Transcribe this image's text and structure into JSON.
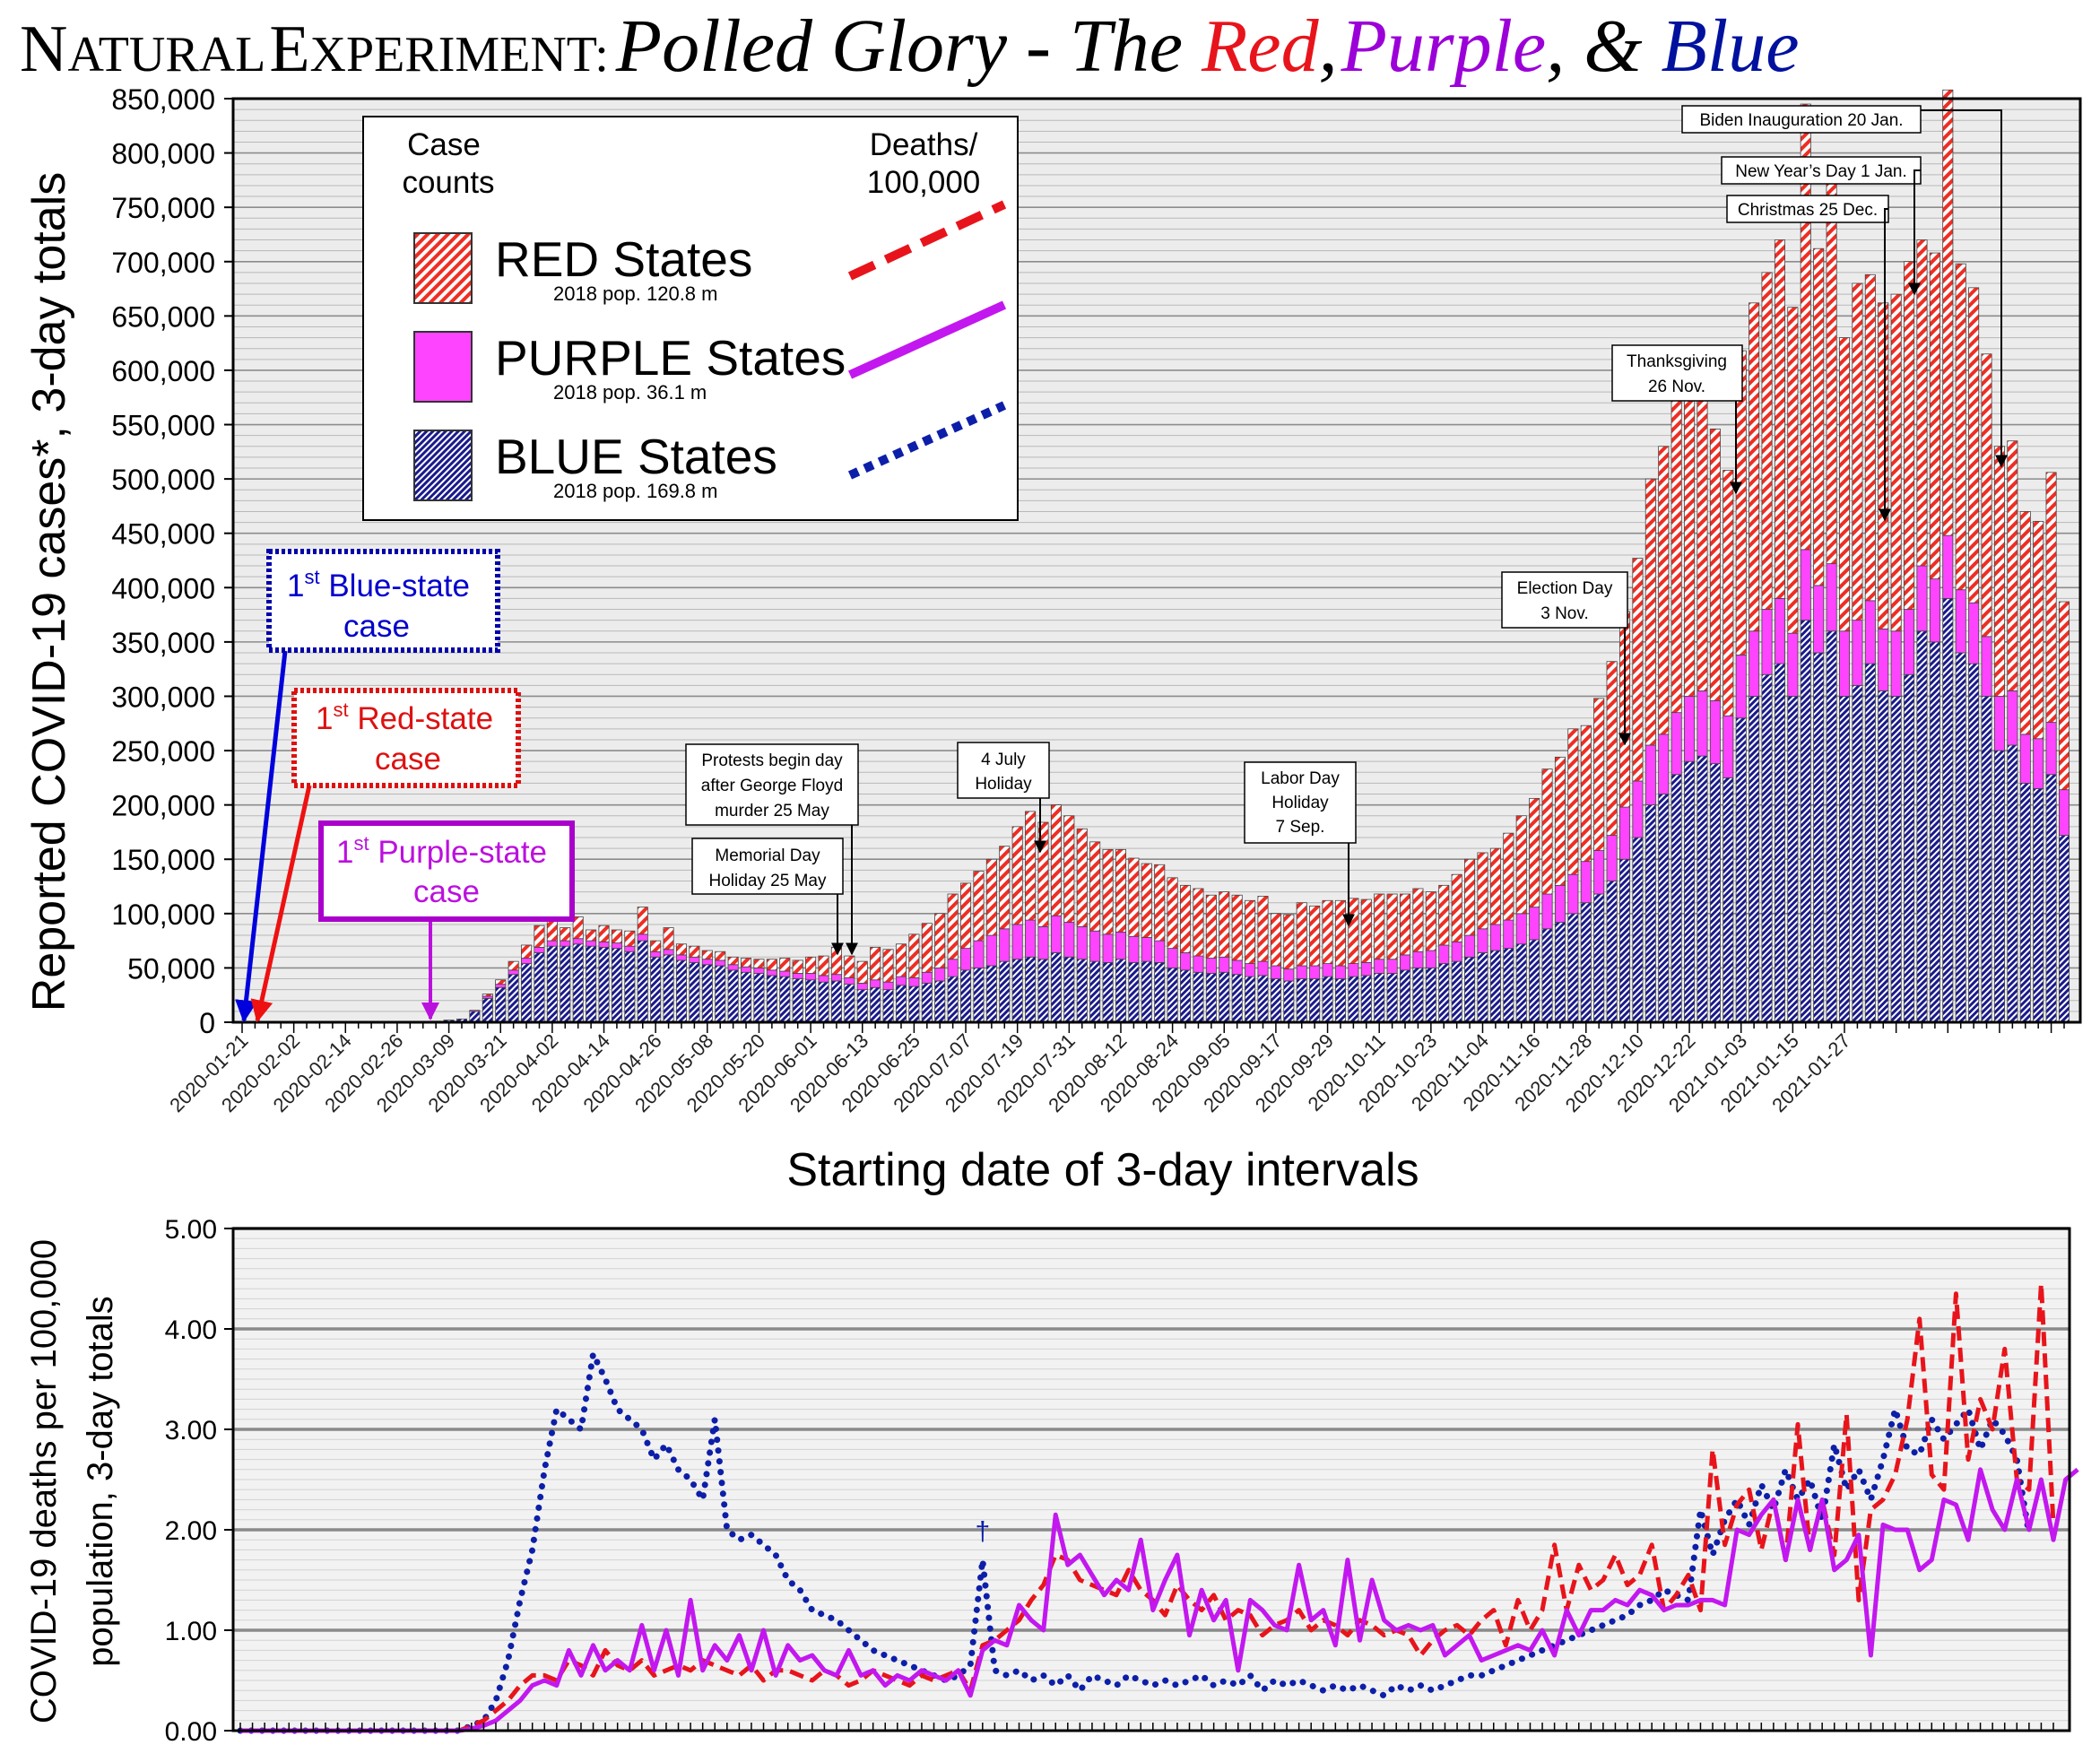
{
  "title": {
    "prefix_N": "N",
    "prefix_atural": "ATURAL",
    "prefix_E": "E",
    "prefix_xperiment": "XPERIMENT:",
    "italic_a": "Polled Glory - The ",
    "red": "Red",
    "comma1": ",",
    "purple": "Purple",
    "comma2": ", & ",
    "blue": "Blue",
    "colors": {
      "red": "#e8141b",
      "purple": "#9b00d8",
      "blue": "#00119e"
    }
  },
  "top_chart": {
    "ylabel": "Reported COVID-19 cases*,  3-day totals",
    "xlabel": "Starting date of 3-day intervals",
    "yticks": [
      "0",
      "50,000",
      "100,000",
      "150,000",
      "200,000",
      "250,000",
      "300,000",
      "350,000",
      "400,000",
      "450,000",
      "500,000",
      "550,000",
      "600,000",
      "650,000",
      "700,000",
      "750,000",
      "800,000",
      "850,000"
    ],
    "xticks": [
      "2020-01-21",
      "2020-02-02",
      "2020-02-14",
      "2020-02-26",
      "2020-03-09",
      "2020-03-21",
      "2020-04-02",
      "2020-04-14",
      "2020-04-26",
      "2020-05-08",
      "2020-05-20",
      "2020-06-01",
      "2020-06-13",
      "2020-06-25",
      "2020-07-07",
      "2020-07-19",
      "2020-07-31",
      "2020-08-12",
      "2020-08-24",
      "2020-09-05",
      "2020-09-17",
      "2020-09-29",
      "2020-10-11",
      "2020-10-23",
      "2020-11-04",
      "2020-11-16",
      "2020-11-28",
      "2020-12-10",
      "2020-12-22",
      "2021-01-03",
      "2021-01-15",
      "2021-01-27"
    ],
    "legend": {
      "cases_header_1": "Case",
      "cases_header_2": "counts",
      "deaths_header_1": "Deaths/",
      "deaths_header_2": "100,000",
      "items": [
        {
          "label": "RED States",
          "pop": "2018 pop. 120.8 m"
        },
        {
          "label": "PURPLE States",
          "pop": "2018 pop.  36.1 m"
        },
        {
          "label": "BLUE States",
          "pop": "2018 pop. 169.8 m"
        }
      ]
    },
    "first_cases": {
      "blue_1": "1",
      "blue_sup": "st",
      "blue_2": " Blue-state",
      "blue_3": "case",
      "red_1": "1",
      "red_sup": "st",
      "red_2": " Red-state",
      "red_3": "case",
      "purple_1": "1",
      "purple_sup": "st",
      "purple_2": " Purple-state",
      "purple_3": "case"
    },
    "annotations": {
      "memorial_1": "Memorial Day",
      "memorial_2": "Holiday 25 May",
      "protests_1": "Protests begin day",
      "protests_2": "after George Floyd",
      "protests_3": "murder 25 May",
      "july_1": "4 July",
      "july_2": "Holiday",
      "labor_1": "Labor Day",
      "labor_2": "Holiday",
      "labor_3": "7 Sep.",
      "election_1": "Election Day",
      "election_2": "3 Nov.",
      "thanks_1": "Thanksgiving",
      "thanks_2": "26 Nov.",
      "christmas": "Christmas 25 Dec.",
      "newyear": "New Year’s Day 1 Jan.",
      "biden": "Biden Inauguration 20 Jan."
    }
  },
  "bottom_chart": {
    "ylabel_1": "COVID-19 deaths per 100,000",
    "ylabel_2": "population, 3-day totals",
    "yticks": [
      "0.00",
      "1.00",
      "2.00",
      "3.00",
      "4.00",
      "5.00"
    ],
    "dagger": "†"
  },
  "chart_data": [
    {
      "type": "bar",
      "stacked": true,
      "x_start": "2020-01-21",
      "interval_days": 3,
      "ylim": [
        0,
        850000
      ],
      "series": [
        {
          "name": "BLUE States",
          "color": "#1a1a8c",
          "values": [
            0,
            0,
            0,
            0,
            0,
            0,
            0,
            0,
            0,
            0,
            0,
            0,
            0,
            0,
            0,
            1000,
            2000,
            3000,
            10000,
            22000,
            32000,
            44000,
            54000,
            64000,
            70000,
            70000,
            72000,
            70000,
            69000,
            68000,
            65000,
            75000,
            60000,
            62000,
            57000,
            55000,
            53000,
            52000,
            48000,
            46000,
            45000,
            43000,
            42000,
            40000,
            39000,
            37000,
            38000,
            35000,
            30000,
            32000,
            30000,
            34000,
            33000,
            36000,
            38000,
            42000,
            48000,
            50000,
            52000,
            56000,
            58000,
            60000,
            58000,
            64000,
            60000,
            58000,
            56000,
            55000,
            58000,
            55000,
            56000,
            55000,
            50000,
            48000,
            46000,
            45000,
            46000,
            44000,
            42000,
            43000,
            40000,
            38000,
            40000,
            40000,
            42000,
            40000,
            42000,
            43000,
            45000,
            45000,
            48000,
            50000,
            50000,
            54000,
            56000,
            60000,
            64000,
            66000,
            68000,
            72000,
            76000,
            86000,
            92000,
            100000,
            110000,
            118000,
            130000,
            150000,
            170000,
            200000,
            210000,
            228000,
            240000,
            245000,
            238000,
            225000,
            280000,
            300000,
            320000,
            330000,
            300000,
            370000,
            340000,
            360000,
            300000,
            310000,
            330000,
            305000,
            300000,
            320000,
            360000,
            350000,
            390000,
            340000,
            330000,
            300000,
            250000,
            255000,
            220000,
            215000,
            228000,
            172000
          ]
        },
        {
          "name": "PURPLE States",
          "color": "#ff44ff",
          "values": [
            0,
            0,
            0,
            0,
            0,
            0,
            0,
            0,
            0,
            0,
            0,
            0,
            0,
            0,
            0,
            0,
            0,
            0,
            1000,
            2000,
            3000,
            4000,
            5000,
            5000,
            5000,
            5000,
            5000,
            5000,
            5000,
            5000,
            5000,
            6000,
            5000,
            5000,
            5000,
            5000,
            5000,
            5000,
            5000,
            5000,
            5000,
            5000,
            5000,
            5000,
            6000,
            6000,
            6000,
            6000,
            6000,
            7000,
            7000,
            8000,
            8000,
            10000,
            12000,
            16000,
            20000,
            25000,
            28000,
            30000,
            32000,
            34000,
            30000,
            34000,
            32000,
            30000,
            28000,
            26000,
            25000,
            24000,
            22000,
            20000,
            18000,
            16000,
            15000,
            14000,
            14000,
            13000,
            12000,
            13000,
            12000,
            11000,
            12000,
            12000,
            12000,
            12000,
            12000,
            12000,
            13000,
            13000,
            14000,
            15000,
            16000,
            17000,
            18000,
            20000,
            22000,
            24000,
            26000,
            28000,
            30000,
            32000,
            34000,
            36000,
            38000,
            40000,
            42000,
            48000,
            52000,
            55000,
            55000,
            57000,
            60000,
            60000,
            58000,
            57000,
            58000,
            60000,
            60000,
            60000,
            58000,
            65000,
            62000,
            62000,
            60000,
            60000,
            58000,
            57000,
            60000,
            60000,
            60000,
            58000,
            58000,
            58000,
            56000,
            55000,
            50000,
            50000,
            45000,
            46000,
            48000,
            42000
          ]
        },
        {
          "name": "RED States",
          "color": "#ee2e24",
          "values": [
            0,
            0,
            0,
            0,
            0,
            0,
            0,
            0,
            0,
            0,
            0,
            0,
            0,
            0,
            0,
            0,
            0,
            0,
            0,
            2000,
            4000,
            8000,
            12000,
            20000,
            25000,
            12000,
            20000,
            10000,
            15000,
            12000,
            14000,
            25000,
            10000,
            20000,
            10000,
            10000,
            8000,
            8000,
            7000,
            8000,
            8000,
            10000,
            12000,
            12000,
            15000,
            18000,
            25000,
            20000,
            20000,
            30000,
            30000,
            30000,
            40000,
            45000,
            50000,
            60000,
            60000,
            64000,
            70000,
            76000,
            90000,
            100000,
            96000,
            102000,
            98000,
            90000,
            82000,
            78000,
            76000,
            72000,
            68000,
            70000,
            65000,
            62000,
            62000,
            58000,
            60000,
            60000,
            58000,
            60000,
            48000,
            50000,
            58000,
            55000,
            58000,
            60000,
            60000,
            58000,
            60000,
            60000,
            56000,
            58000,
            54000,
            55000,
            62000,
            70000,
            70000,
            70000,
            80000,
            90000,
            100000,
            115000,
            118000,
            134000,
            125000,
            140000,
            160000,
            180000,
            205000,
            245000,
            265000,
            300000,
            300000,
            292000,
            250000,
            226000,
            280000,
            302000,
            310000,
            330000,
            300000,
            410000,
            310000,
            360000,
            270000,
            310000,
            300000,
            300000,
            310000,
            320000,
            300000,
            300000,
            410000,
            300000,
            290000,
            260000,
            230000,
            230000,
            205000,
            200000,
            230000,
            173000
          ]
        }
      ]
    },
    {
      "type": "line",
      "x_start": "2020-01-21",
      "interval_days": 3,
      "ylim": [
        0,
        5
      ],
      "series": [
        {
          "name": "RED States",
          "color": "#e8141b",
          "style": "dashed",
          "values": [
            0,
            0,
            0,
            0,
            0,
            0,
            0,
            0,
            0,
            0,
            0,
            0,
            0,
            0,
            0,
            0,
            0,
            0,
            0,
            0.05,
            0.1,
            0.2,
            0.3,
            0.45,
            0.55,
            0.55,
            0.5,
            0.7,
            0.65,
            0.55,
            0.8,
            0.65,
            0.6,
            0.7,
            0.55,
            0.6,
            0.65,
            0.6,
            0.7,
            0.65,
            0.6,
            0.55,
            0.65,
            0.5,
            0.6,
            0.6,
            0.55,
            0.5,
            0.6,
            0.55,
            0.45,
            0.5,
            0.6,
            0.55,
            0.5,
            0.45,
            0.55,
            0.5,
            0.55,
            0.6,
            0.4,
            0.85,
            0.9,
            1.0,
            1.1,
            1.3,
            1.45,
            1.75,
            1.7,
            1.5,
            1.45,
            1.4,
            1.35,
            1.6,
            1.4,
            1.3,
            1.15,
            1.45,
            1.3,
            1.2,
            1.35,
            1.1,
            1.2,
            1.15,
            0.95,
            1.05,
            1.1,
            1.2,
            1.0,
            1.1,
            1.05,
            0.95,
            1.1,
            1.05,
            0.95,
            1.0,
            0.95,
            0.75,
            0.9,
            1.0,
            1.05,
            0.95,
            1.1,
            1.2,
            0.85,
            1.3,
            1.0,
            1.2,
            1.85,
            1.2,
            1.65,
            1.4,
            1.5,
            1.75,
            1.45,
            1.55,
            1.85,
            1.2,
            1.35,
            1.55,
            1.2,
            2.8,
            1.85,
            2.25,
            2.4,
            1.8,
            2.3,
            1.7,
            3.05,
            1.8,
            2.3,
            1.75,
            3.15,
            1.3,
            2.2,
            2.3,
            2.55,
            3.1,
            4.1,
            2.55,
            2.4,
            4.35,
            2.7,
            3.3,
            3.0,
            3.8,
            2.5,
            2.4,
            4.45,
            2.05
          ]
        },
        {
          "name": "PURPLE States",
          "color": "#c218ef",
          "style": "solid",
          "values": [
            0,
            0,
            0,
            0,
            0,
            0,
            0,
            0,
            0,
            0,
            0,
            0,
            0,
            0,
            0,
            0,
            0,
            0,
            0,
            0.02,
            0.05,
            0.1,
            0.2,
            0.3,
            0.45,
            0.5,
            0.45,
            0.8,
            0.55,
            0.85,
            0.6,
            0.7,
            0.6,
            1.05,
            0.6,
            1.0,
            0.55,
            1.3,
            0.6,
            0.85,
            0.7,
            0.95,
            0.6,
            1.0,
            0.55,
            0.85,
            0.7,
            0.75,
            0.6,
            0.55,
            0.8,
            0.55,
            0.6,
            0.45,
            0.55,
            0.5,
            0.6,
            0.55,
            0.5,
            0.6,
            0.35,
            0.8,
            0.9,
            0.85,
            1.25,
            1.1,
            1.0,
            2.15,
            1.65,
            1.75,
            1.55,
            1.35,
            1.5,
            1.4,
            1.9,
            1.2,
            1.5,
            1.75,
            0.95,
            1.4,
            1.1,
            1.3,
            0.6,
            1.3,
            1.2,
            1.05,
            1.0,
            1.65,
            1.1,
            1.2,
            0.85,
            1.7,
            0.9,
            1.5,
            1.1,
            1.0,
            1.05,
            1.0,
            1.05,
            0.75,
            0.85,
            0.95,
            0.7,
            0.75,
            0.8,
            0.85,
            0.8,
            1.0,
            0.75,
            1.2,
            0.95,
            1.2,
            1.2,
            1.3,
            1.25,
            1.4,
            1.35,
            1.2,
            1.25,
            1.25,
            1.3,
            1.3,
            1.25,
            2.0,
            1.95,
            2.15,
            2.3,
            1.7,
            2.3,
            1.8,
            2.3,
            1.6,
            1.7,
            1.95,
            0.75,
            2.05,
            2.0,
            2.0,
            1.6,
            1.7,
            2.3,
            2.25,
            1.9,
            2.6,
            2.2,
            2.0,
            2.5,
            2.0,
            2.5,
            1.9,
            2.5,
            2.6
          ]
        },
        {
          "name": "BLUE States",
          "color": "#0d1fa8",
          "style": "dotted",
          "values": [
            0,
            0,
            0,
            0,
            0,
            0,
            0,
            0,
            0,
            0,
            0,
            0,
            0,
            0,
            0,
            0,
            0,
            0,
            0,
            0.05,
            0.1,
            0.3,
            0.7,
            1.3,
            1.8,
            2.6,
            3.2,
            3.1,
            3.0,
            3.75,
            3.5,
            3.2,
            3.1,
            3.0,
            2.7,
            2.85,
            2.6,
            2.5,
            2.3,
            3.1,
            2.0,
            1.9,
            1.95,
            1.85,
            1.75,
            1.5,
            1.4,
            1.2,
            1.15,
            1.1,
            1.0,
            0.9,
            0.8,
            0.75,
            0.7,
            0.65,
            0.6,
            0.55,
            0.5,
            0.55,
            0.65,
            1.7,
            0.6,
            0.55,
            0.6,
            0.5,
            0.55,
            0.45,
            0.55,
            0.4,
            0.55,
            0.5,
            0.45,
            0.55,
            0.5,
            0.45,
            0.5,
            0.45,
            0.5,
            0.55,
            0.45,
            0.5,
            0.45,
            0.55,
            0.4,
            0.5,
            0.45,
            0.5,
            0.45,
            0.4,
            0.45,
            0.4,
            0.45,
            0.4,
            0.35,
            0.45,
            0.4,
            0.45,
            0.4,
            0.45,
            0.5,
            0.55,
            0.55,
            0.6,
            0.65,
            0.7,
            0.75,
            0.8,
            0.85,
            0.9,
            0.95,
            1.0,
            1.05,
            1.1,
            1.15,
            1.25,
            1.3,
            1.4,
            1.35,
            1.3,
            2.2,
            1.75,
            2.1,
            2.3,
            2.05,
            2.45,
            2.2,
            2.6,
            2.3,
            2.5,
            2.1,
            2.85,
            2.4,
            2.6,
            2.3,
            2.7,
            3.2,
            2.8,
            2.75,
            3.1,
            2.9,
            3.05,
            3.2,
            2.8,
            3.1,
            2.95,
            2.7,
            1.95
          ]
        }
      ]
    }
  ]
}
